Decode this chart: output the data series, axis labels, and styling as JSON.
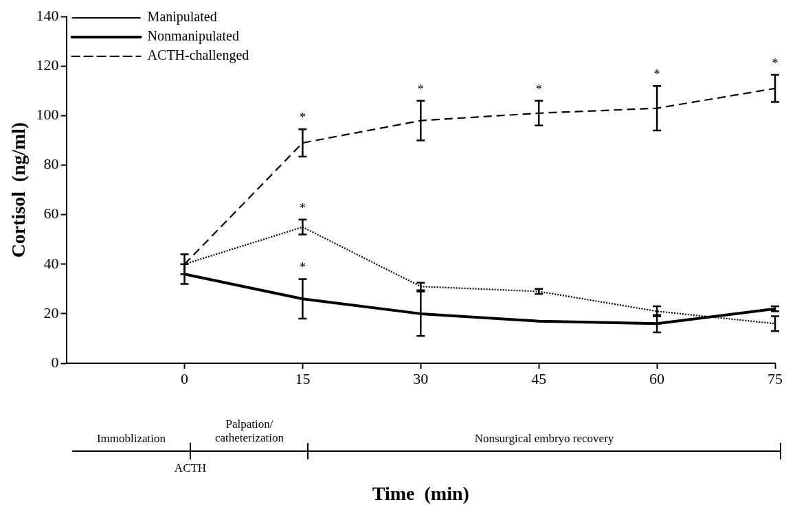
{
  "chart_data": {
    "type": "line",
    "xlabel": "Time  (min)",
    "ylabel": "Cortisol  (ng/ml)",
    "x": [
      0,
      15,
      30,
      45,
      60,
      75
    ],
    "series": [
      {
        "name": "Manipulated",
        "color": "#000000",
        "line_style": "dotted",
        "values": [
          40,
          55,
          31,
          29,
          21,
          16
        ],
        "errors": [
          null,
          3,
          1.5,
          1,
          2,
          3
        ]
      },
      {
        "name": "Nonmanipulated",
        "color": "#000000",
        "line_style": "solid",
        "values": [
          36,
          26,
          20,
          17,
          16,
          22
        ],
        "errors": [
          4,
          8,
          9,
          null,
          3.5,
          1
        ]
      },
      {
        "name": "ACTH-challenged",
        "color": "#000000",
        "line_style": "dashed",
        "values": [
          40,
          89,
          98,
          101,
          103,
          111
        ],
        "errors": [
          4,
          5.5,
          8,
          5,
          9,
          5.5
        ]
      }
    ],
    "xlim": [
      -15,
      75
    ],
    "xticks": [
      0,
      15,
      30,
      45,
      60,
      75
    ],
    "ylim": [
      0,
      140
    ],
    "yticks": [
      0,
      20,
      40,
      60,
      80,
      100,
      120,
      140
    ],
    "grid": false,
    "legend": "top left",
    "annotations": [
      {
        "text": "*",
        "x": 15,
        "y": 89
      },
      {
        "text": "*",
        "x": 15,
        "y": 55
      },
      {
        "text": "*",
        "x": 15,
        "y": 26
      },
      {
        "text": "*",
        "x": 30,
        "y": 98
      },
      {
        "text": "*",
        "x": 45,
        "y": 101
      },
      {
        "text": "*",
        "x": 60,
        "y": 103
      },
      {
        "text": "*",
        "x": 75,
        "y": 111
      },
      "Immoblization",
      "Palpation/\ncatheterization",
      "Nonsurgical embryo recovery",
      "ACTH"
    ]
  }
}
